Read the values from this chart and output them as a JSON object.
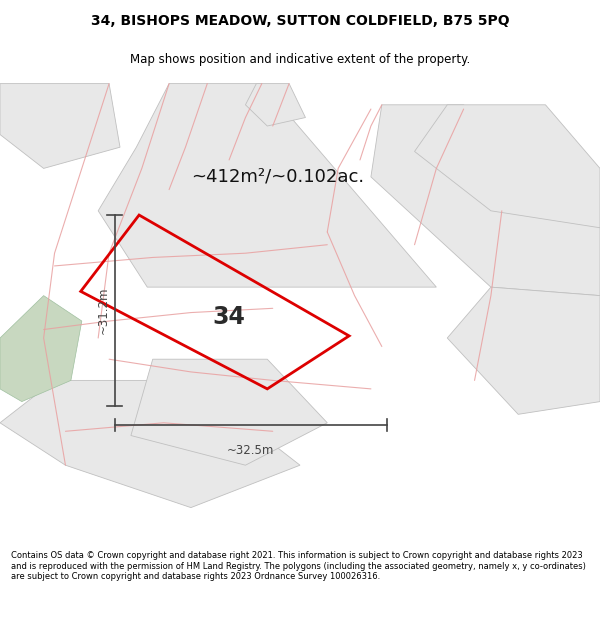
{
  "title_line1": "34, BISHOPS MEADOW, SUTTON COLDFIELD, B75 5PQ",
  "title_line2": "Map shows position and indicative extent of the property.",
  "area_text": "~412m²/~0.102ac.",
  "label_number": "34",
  "dim_height": "~31.2m",
  "dim_width": "~32.5m",
  "footer": "Contains OS data © Crown copyright and database right 2021. This information is subject to Crown copyright and database rights 2023 and is reproduced with the permission of HM Land Registry. The polygons (including the associated geometry, namely x, y co-ordinates) are subject to Crown copyright and database rights 2023 Ordnance Survey 100026316.",
  "bg_color": "#ffffff",
  "map_bg": "#ffffff",
  "gray_fill": "#e8e8e8",
  "gray_edge": "#c0c0c0",
  "pink_road": "#e8a0a0",
  "red_poly": "#dd0000",
  "green_fill": "#c8d8c0",
  "green_edge": "#a0c0a0",
  "dim_color": "#444444",
  "text_dark": "#111111",
  "title1_size": 10,
  "title2_size": 8.5,
  "area_size": 13,
  "label_size": 17,
  "dim_size": 8.5,
  "footer_size": 6.0,
  "red_lw": 2.0,
  "gray_lw": 0.6,
  "pink_lw": 0.8
}
